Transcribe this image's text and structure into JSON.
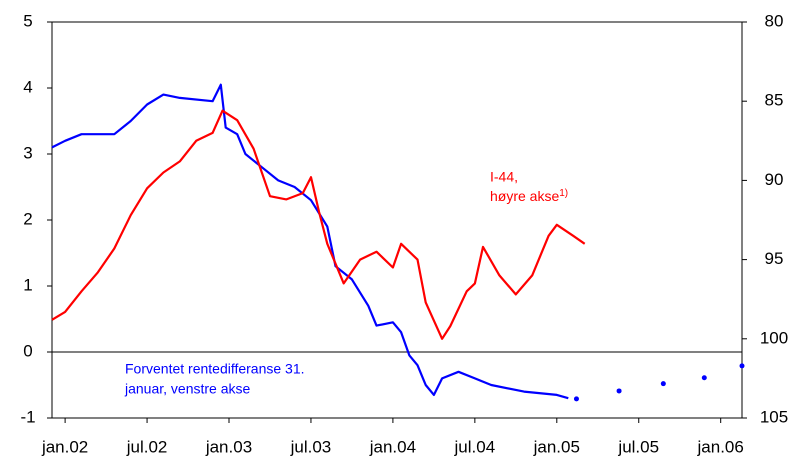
{
  "chart_data": {
    "type": "line",
    "xlim": [
      2001.92,
      2006.13
    ],
    "xticks": [
      {
        "value": 2002.0,
        "label": "jan.02"
      },
      {
        "value": 2002.5,
        "label": "jul.02"
      },
      {
        "value": 2003.0,
        "label": "jan.03"
      },
      {
        "value": 2003.5,
        "label": "jul.03"
      },
      {
        "value": 2004.0,
        "label": "jan.04"
      },
      {
        "value": 2004.5,
        "label": "jul.04"
      },
      {
        "value": 2005.0,
        "label": "jan.05"
      },
      {
        "value": 2005.5,
        "label": "jul.05"
      },
      {
        "value": 2006.0,
        "label": "jan.06"
      }
    ],
    "ylim": [
      -1,
      5
    ],
    "yticks": [
      -1,
      0,
      1,
      2,
      3,
      4,
      5
    ],
    "y2lim": [
      105,
      80
    ],
    "y2ticks": [
      80,
      85,
      90,
      95,
      100,
      105
    ],
    "series": [
      {
        "color": "#0000ff",
        "axis": "y",
        "marker": "line",
        "x": [
          2001.92,
          2002.0,
          2002.1,
          2002.3,
          2002.4,
          2002.5,
          2002.6,
          2002.7,
          2002.9,
          2002.95,
          2002.98,
          2003.05,
          2003.1,
          2003.2,
          2003.3,
          2003.4,
          2003.5,
          2003.6,
          2003.65,
          2003.75,
          2003.85,
          2003.9,
          2004.0,
          2004.05,
          2004.1,
          2004.15,
          2004.2,
          2004.25,
          2004.3,
          2004.4,
          2004.5,
          2004.6,
          2004.8,
          2005.0,
          2005.07
        ],
        "values": [
          3.1,
          3.2,
          3.3,
          3.3,
          3.5,
          3.75,
          3.9,
          3.85,
          3.8,
          4.05,
          3.4,
          3.3,
          3.0,
          2.8,
          2.6,
          2.5,
          2.3,
          1.9,
          1.3,
          1.1,
          0.7,
          0.4,
          0.45,
          0.3,
          -0.05,
          -0.2,
          -0.5,
          -0.65,
          -0.4,
          -0.3,
          -0.4,
          -0.5,
          -0.6,
          -0.65,
          -0.7
        ]
      },
      {
        "color": "#0000ff",
        "axis": "y",
        "marker": "dot",
        "x": [
          2005.12,
          2005.38,
          2005.65,
          2005.9,
          2006.13
        ],
        "values": [
          -0.71,
          -0.59,
          -0.48,
          -0.39,
          -0.21
        ]
      },
      {
        "color": "#ff0000",
        "axis": "y2",
        "marker": "line",
        "x": [
          2001.92,
          2002.0,
          2002.1,
          2002.2,
          2002.3,
          2002.4,
          2002.5,
          2002.6,
          2002.7,
          2002.8,
          2002.9,
          2002.96,
          2003.05,
          2003.15,
          2003.25,
          2003.35,
          2003.45,
          2003.5,
          2003.55,
          2003.6,
          2003.7,
          2003.8,
          2003.9,
          2004.0,
          2004.05,
          2004.15,
          2004.2,
          2004.3,
          2004.35,
          2004.45,
          2004.5,
          2004.55,
          2004.65,
          2004.75,
          2004.85,
          2004.95,
          2005.0,
          2005.1,
          2005.17
        ],
        "values": [
          98.8,
          98.3,
          97.0,
          95.8,
          94.3,
          92.2,
          90.5,
          89.5,
          88.8,
          87.5,
          87.0,
          85.6,
          86.2,
          88.0,
          91.0,
          91.2,
          90.8,
          89.8,
          92.0,
          94.0,
          96.5,
          95.0,
          94.5,
          95.5,
          94.0,
          95.0,
          97.7,
          100.0,
          99.2,
          97.0,
          96.5,
          94.2,
          96.0,
          97.2,
          96.0,
          93.5,
          92.8,
          93.5,
          94.0
        ]
      }
    ],
    "annotations": {
      "red": [
        "I-44,",
        "høyre akse",
        "1)"
      ],
      "blue": [
        "Forventet rentedifferanse 31.",
        "januar, venstre akse"
      ]
    }
  }
}
